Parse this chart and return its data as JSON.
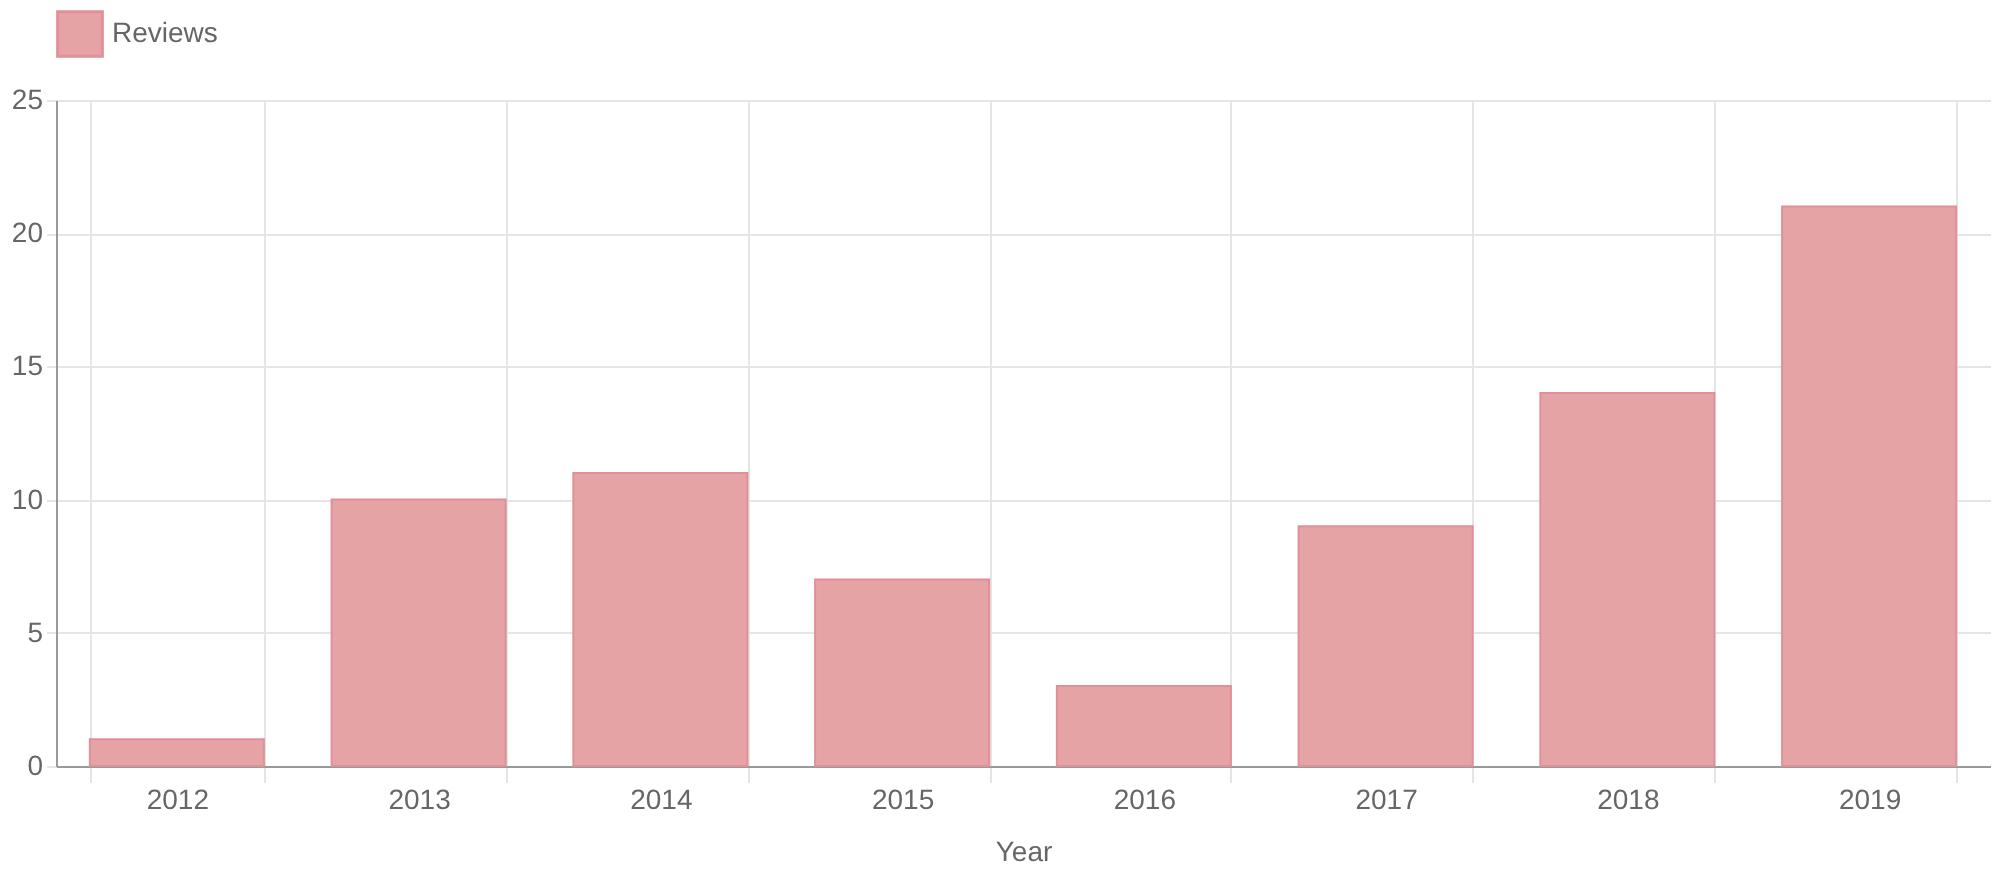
{
  "chart_data": {
    "type": "bar",
    "xlabel": "Year",
    "categories": [
      "2012",
      "2013",
      "2014",
      "2015",
      "2016",
      "2017",
      "2018",
      "2019"
    ],
    "series": [
      {
        "name": "Reviews",
        "color": "#e5a3a6",
        "values": [
          1,
          10,
          11,
          7,
          3,
          9,
          14,
          21
        ]
      }
    ],
    "ylim": [
      0,
      25
    ],
    "yticks": [
      0,
      5,
      10,
      15,
      20,
      25
    ],
    "grid": true,
    "legend": "top"
  }
}
